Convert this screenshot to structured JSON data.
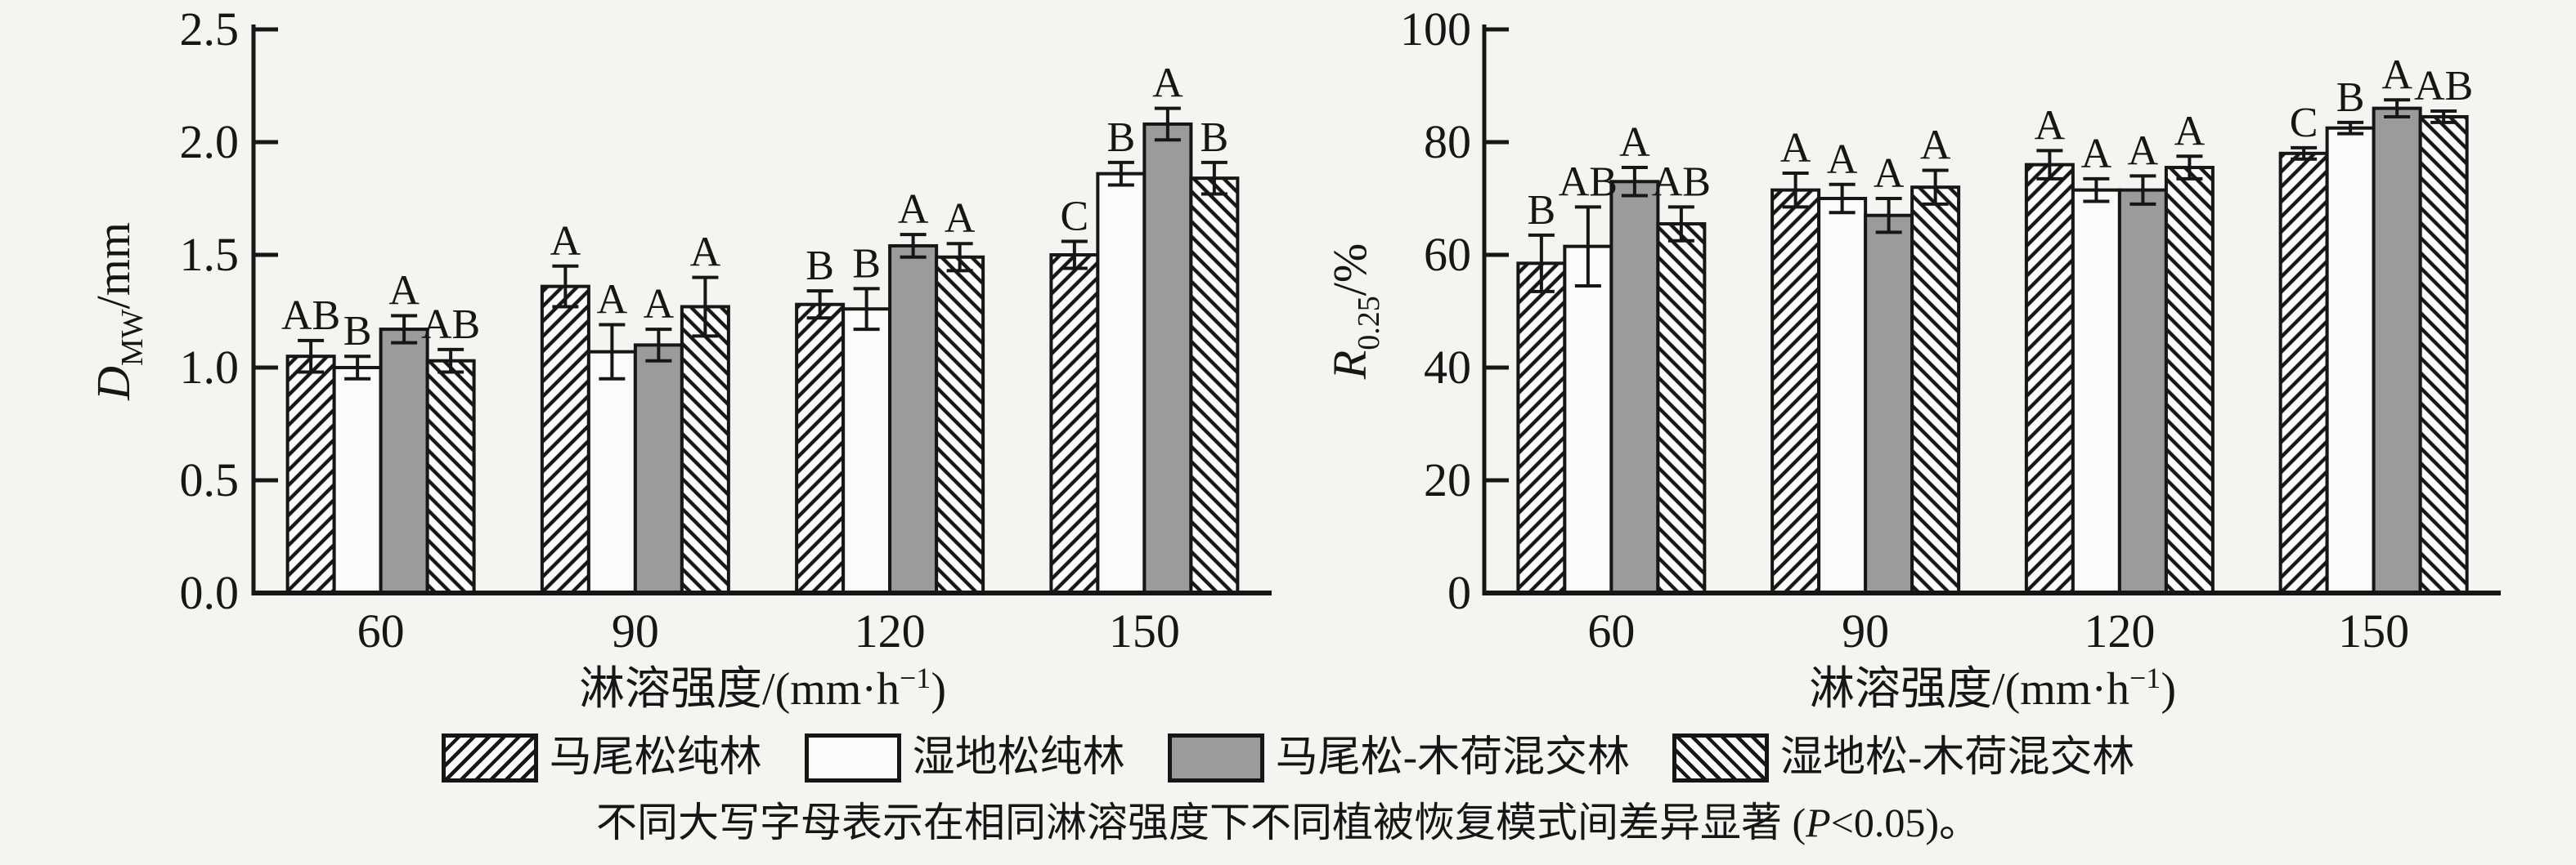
{
  "colors": {
    "background": "#f5f4f1",
    "ink": "#161616",
    "gray_fill": "#9b9b9b",
    "white_fill": "#fbfbfa"
  },
  "chart_data": [
    {
      "type": "bar",
      "title": "",
      "ylabel": {
        "var": "D",
        "sub": "MW",
        "unit": "/mm"
      },
      "xlabel": {
        "main": "淋溶强度/(mm·h",
        "sup": "−1",
        "end": ")"
      },
      "ylim": [
        0,
        2.5
      ],
      "grid": false,
      "yticks": [
        {
          "v": 0.0,
          "label": "0.0"
        },
        {
          "v": 0.5,
          "label": "0.5"
        },
        {
          "v": 1.0,
          "label": "1.0"
        },
        {
          "v": 1.5,
          "label": "1.5"
        },
        {
          "v": 2.0,
          "label": "2.0"
        },
        {
          "v": 2.5,
          "label": "2.5"
        }
      ],
      "categories": [
        "60",
        "90",
        "120",
        "150"
      ],
      "series": [
        {
          "name": "马尾松纯林",
          "pattern": "hatch-forward",
          "values": [
            1.05,
            1.36,
            1.28,
            1.5
          ],
          "errors": [
            0.07,
            0.09,
            0.06,
            0.06
          ],
          "letters": [
            "AB",
            "A",
            "B",
            "C"
          ]
        },
        {
          "name": "湿地松纯林",
          "pattern": "white",
          "values": [
            1.0,
            1.07,
            1.26,
            1.86
          ],
          "errors": [
            0.05,
            0.12,
            0.09,
            0.05
          ],
          "letters": [
            "B",
            "A",
            "B",
            "B"
          ]
        },
        {
          "name": "马尾松-木荷混交林",
          "pattern": "gray",
          "values": [
            1.17,
            1.1,
            1.54,
            2.08
          ],
          "errors": [
            0.06,
            0.07,
            0.05,
            0.07
          ],
          "letters": [
            "A",
            "A",
            "A",
            "A"
          ]
        },
        {
          "name": "湿地松-木荷混交林",
          "pattern": "hatch-back",
          "values": [
            1.03,
            1.27,
            1.49,
            1.84
          ],
          "errors": [
            0.05,
            0.13,
            0.06,
            0.07
          ],
          "letters": [
            "AB",
            "A",
            "A",
            "B"
          ]
        }
      ]
    },
    {
      "type": "bar",
      "title": "",
      "ylabel": {
        "var": "R",
        "sub": "0.25",
        "unit": "/%"
      },
      "xlabel": {
        "main": "淋溶强度/(mm·h",
        "sup": "−1",
        "end": ")"
      },
      "ylim": [
        0,
        100
      ],
      "grid": false,
      "yticks": [
        {
          "v": 0,
          "label": "0"
        },
        {
          "v": 20,
          "label": "20"
        },
        {
          "v": 40,
          "label": "40"
        },
        {
          "v": 60,
          "label": "60"
        },
        {
          "v": 80,
          "label": "80"
        },
        {
          "v": 100,
          "label": "100"
        }
      ],
      "categories": [
        "60",
        "90",
        "120",
        "150"
      ],
      "series": [
        {
          "name": "马尾松纯林",
          "pattern": "hatch-forward",
          "values": [
            58.5,
            71.5,
            76.0,
            78.0
          ],
          "errors": [
            5.0,
            3.0,
            2.5,
            1.0
          ],
          "letters": [
            "B",
            "A",
            "A",
            "C"
          ]
        },
        {
          "name": "湿地松纯林",
          "pattern": "white",
          "values": [
            61.5,
            70.0,
            71.5,
            82.5
          ],
          "errors": [
            7.0,
            2.5,
            2.0,
            1.0
          ],
          "letters": [
            "AB",
            "A",
            "A",
            "B"
          ]
        },
        {
          "name": "马尾松-木荷混交林",
          "pattern": "gray",
          "values": [
            73.0,
            67.0,
            71.5,
            86.0
          ],
          "errors": [
            2.5,
            3.0,
            2.5,
            1.5
          ],
          "letters": [
            "A",
            "A",
            "A",
            "A"
          ]
        },
        {
          "name": "湿地松-木荷混交林",
          "pattern": "hatch-back",
          "values": [
            65.5,
            72.0,
            75.5,
            84.5
          ],
          "errors": [
            3.0,
            3.0,
            2.0,
            1.0
          ],
          "letters": [
            "AB",
            "A",
            "A",
            "AB"
          ]
        }
      ]
    }
  ],
  "legend": {
    "items": [
      {
        "label": "马尾松纯林",
        "pattern": "hatch-forward"
      },
      {
        "label": "湿地松纯林",
        "pattern": "white"
      },
      {
        "label": "马尾松-木荷混交林",
        "pattern": "gray"
      },
      {
        "label": "湿地松-木荷混交林",
        "pattern": "hatch-back"
      }
    ]
  },
  "note": {
    "pre": "不同大写字母表示在相同淋溶强度下不同植被恢复模式间差异显著 (",
    "p": "P",
    "post": "<0.05)。"
  }
}
